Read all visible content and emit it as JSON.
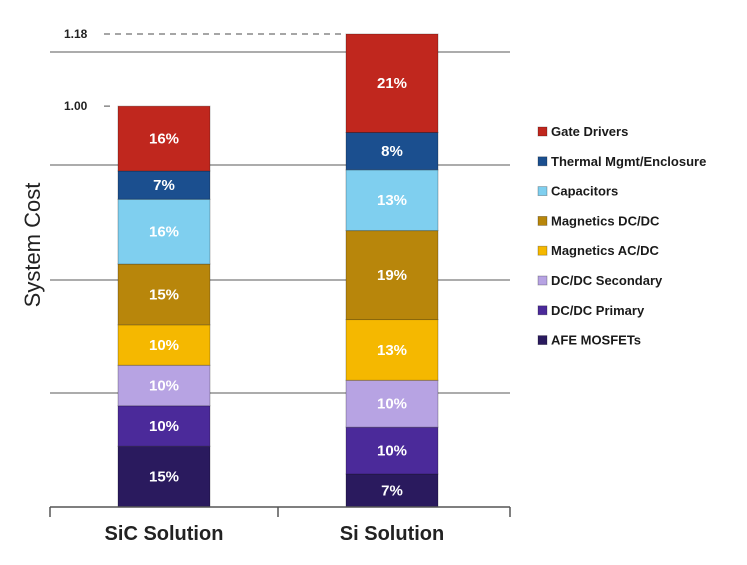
{
  "chart_data": {
    "type": "bar",
    "stacked": true,
    "ylabel": "System Cost",
    "ylim": [
      0,
      1.18
    ],
    "yticks": [
      "1.18",
      "1.00"
    ],
    "grid": true,
    "legend_position": "right",
    "categories": [
      "SiC Solution",
      "Si Solution"
    ],
    "totals": [
      1.0,
      1.18
    ],
    "series": [
      {
        "name": "AFE MOSFETs",
        "color": "#2a1a5e",
        "labels": [
          "15%",
          "7%"
        ],
        "values": [
          0.15,
          0.083
        ]
      },
      {
        "name": "DC/DC Primary",
        "color": "#4b2a9a",
        "labels": [
          "10%",
          "10%"
        ],
        "values": [
          0.1,
          0.118
        ]
      },
      {
        "name": "DC/DC Secondary",
        "color": "#b7a3e3",
        "labels": [
          "10%",
          "10%"
        ],
        "values": [
          0.1,
          0.118
        ]
      },
      {
        "name": "Magnetics AC/DC",
        "color": "#f5b800",
        "labels": [
          "10%",
          "13%"
        ],
        "values": [
          0.1,
          0.153
        ]
      },
      {
        "name": "Magnetics DC/DC",
        "color": "#b8860b",
        "labels": [
          "15%",
          "19%"
        ],
        "values": [
          0.15,
          0.224
        ]
      },
      {
        "name": "Capacitors",
        "color": "#7fcfef",
        "labels": [
          "16%",
          "13%"
        ],
        "values": [
          0.16,
          0.153
        ]
      },
      {
        "name": "Thermal Mgmt/Enclosure",
        "color": "#1b4f8f",
        "labels": [
          "7%",
          "8%"
        ],
        "values": [
          0.07,
          0.094
        ]
      },
      {
        "name": "Gate Drivers",
        "color": "#c0271e",
        "labels": [
          "16%",
          "21%"
        ],
        "values": [
          0.16,
          0.248
        ]
      }
    ]
  }
}
